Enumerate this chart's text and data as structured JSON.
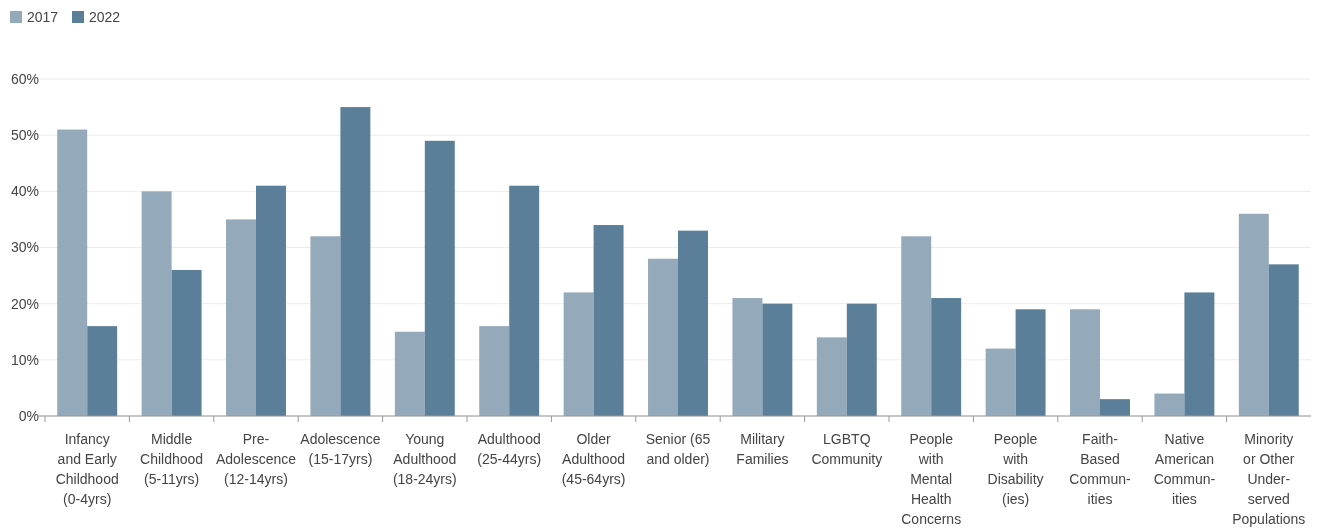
{
  "chart_data": {
    "type": "bar",
    "categories": [
      "Infancy\nand Early\nChildhood\n(0-4yrs)",
      "Middle\nChildhood\n(5-11yrs)",
      "Pre-\nAdolescence\n(12-14yrs)",
      "Adolescence\n(15-17yrs)",
      "Young\nAdulthood\n(18-24yrs)",
      "Adulthood\n(25-44yrs)",
      "Older\nAdulthood\n(45-64yrs)",
      "Senior (65\nand older)",
      "Military\nFamilies",
      "LGBTQ\nCommunity",
      "People\nwith\nMental\nHealth\nConcerns",
      "People\nwith\nDisability\n(ies)",
      "Faith-\nBased\nCommun-\nities",
      "Native\nAmerican\nCommun-\nities",
      "Minority\nor Other\nUnder-\nserved\nPopulations"
    ],
    "series": [
      {
        "name": "2017",
        "color": "#94a9b9",
        "values": [
          51,
          40,
          35,
          32,
          15,
          16,
          22,
          28,
          21,
          14,
          32,
          12,
          19,
          4,
          36
        ]
      },
      {
        "name": "2022",
        "color": "#5b7f99",
        "values": [
          16,
          26,
          41,
          55,
          49,
          41,
          34,
          33,
          20,
          20,
          21,
          19,
          3,
          22,
          27
        ]
      }
    ],
    "ylim": [
      0,
      60
    ],
    "yticks": [
      {
        "value": 0,
        "label": "0%"
      },
      {
        "value": 10,
        "label": "10%"
      },
      {
        "value": 20,
        "label": "20%"
      },
      {
        "value": 30,
        "label": "30%"
      },
      {
        "value": 40,
        "label": "40%"
      },
      {
        "value": 50,
        "label": "50%"
      },
      {
        "value": 60,
        "label": "60%"
      }
    ],
    "grid": "y",
    "legend": "top left"
  }
}
